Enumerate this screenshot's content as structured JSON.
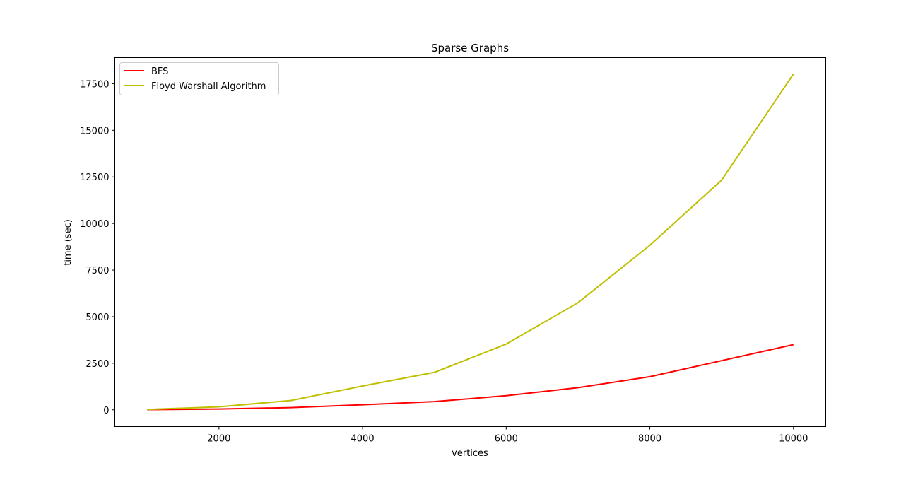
{
  "chart_data": {
    "type": "line",
    "title": "Sparse Graphs",
    "xlabel": "vertices",
    "ylabel": "time  (sec)",
    "xlim": [
      550,
      10450
    ],
    "ylim": [
      -900,
      18900
    ],
    "x_ticks": [
      2000,
      4000,
      6000,
      8000,
      10000
    ],
    "y_ticks": [
      0,
      2500,
      5000,
      7500,
      10000,
      12500,
      15000,
      17500
    ],
    "grid": false,
    "legend_position": "top-left",
    "x": [
      1000,
      2000,
      3000,
      4000,
      5000,
      6000,
      7000,
      8000,
      9000,
      10000
    ],
    "series": [
      {
        "name": "BFS",
        "color": "#ff0000",
        "values": [
          8,
          45,
          120,
          270,
          440,
          760,
          1190,
          1780,
          2640,
          3500
        ]
      },
      {
        "name": "Floyd Warshall Algorithm",
        "color": "#bfbf00",
        "values": [
          20,
          160,
          500,
          1280,
          2010,
          3530,
          5750,
          8830,
          12330,
          18020
        ]
      }
    ]
  }
}
